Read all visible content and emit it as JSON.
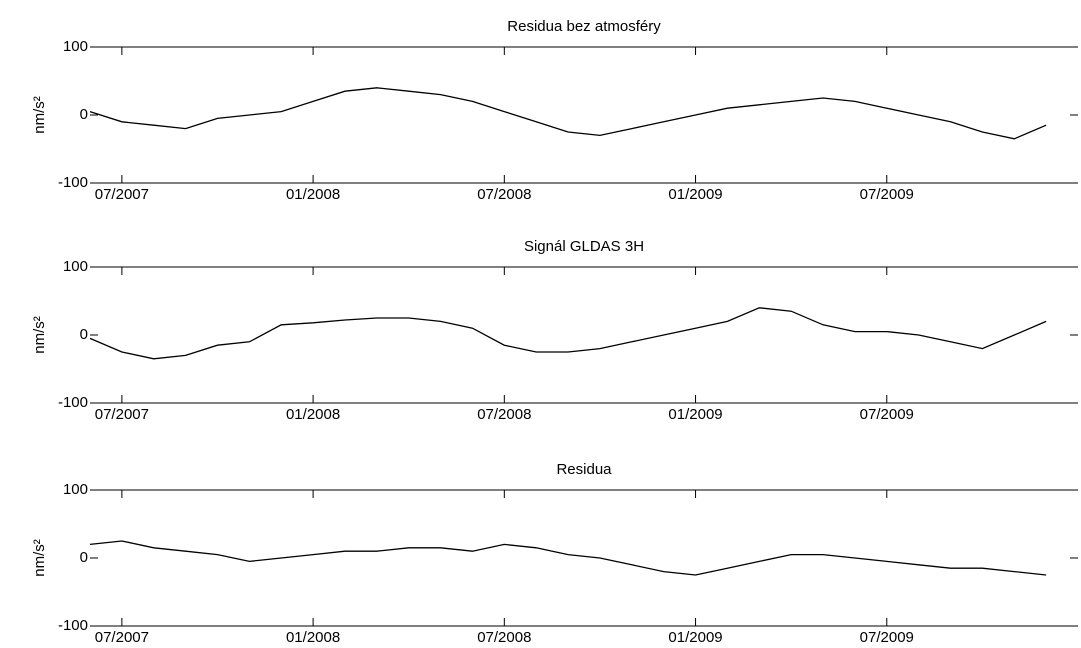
{
  "chart_data": [
    {
      "type": "line",
      "title": "Residua bez atmosféry",
      "y_label": "nm/s²",
      "x": [
        "2007-06",
        "2007-07",
        "2007-08",
        "2007-09",
        "2007-10",
        "2007-11",
        "2007-12",
        "2008-01",
        "2008-02",
        "2008-03",
        "2008-04",
        "2008-05",
        "2008-06",
        "2008-07",
        "2008-08",
        "2008-09",
        "2008-10",
        "2008-11",
        "2008-12",
        "2009-01",
        "2009-02",
        "2009-03",
        "2009-04",
        "2009-05",
        "2009-06",
        "2009-07",
        "2009-08",
        "2009-09",
        "2009-10",
        "2009-11",
        "2009-12"
      ],
      "series": [
        {
          "color": "#000000",
          "values": [
            5,
            -10,
            -15,
            -20,
            -5,
            0,
            5,
            20,
            35,
            40,
            35,
            30,
            20,
            5,
            -10,
            -25,
            -30,
            -20,
            -10,
            0,
            10,
            15,
            20,
            25,
            20,
            10,
            0,
            -10,
            -25,
            -35,
            -15
          ]
        }
      ],
      "xlim": [
        "2007-06",
        "2010-01"
      ],
      "xticks": [
        {
          "value": "2007-07",
          "label": "07/2007"
        },
        {
          "value": "2008-01",
          "label": "01/2008"
        },
        {
          "value": "2008-07",
          "label": "07/2008"
        },
        {
          "value": "2009-01",
          "label": "01/2009"
        },
        {
          "value": "2009-07",
          "label": "07/2009"
        }
      ],
      "ylim": [
        -100,
        100
      ],
      "yticks": [
        -100,
        0,
        100
      ]
    },
    {
      "type": "line",
      "title": "Signál GLDAS 3H",
      "y_label": "nm/s²",
      "x": [
        "2007-06",
        "2007-07",
        "2007-08",
        "2007-09",
        "2007-10",
        "2007-11",
        "2007-12",
        "2008-01",
        "2008-02",
        "2008-03",
        "2008-04",
        "2008-05",
        "2008-06",
        "2008-07",
        "2008-08",
        "2008-09",
        "2008-10",
        "2008-11",
        "2008-12",
        "2009-01",
        "2009-02",
        "2009-03",
        "2009-04",
        "2009-05",
        "2009-06",
        "2009-07",
        "2009-08",
        "2009-09",
        "2009-10",
        "2009-11",
        "2009-12"
      ],
      "series": [
        {
          "color": "#000000",
          "values": [
            -5,
            -25,
            -35,
            -30,
            -15,
            -10,
            15,
            18,
            22,
            25,
            25,
            20,
            10,
            -15,
            -25,
            -25,
            -20,
            -10,
            0,
            10,
            20,
            40,
            35,
            15,
            5,
            5,
            0,
            -10,
            -20,
            0,
            20
          ]
        }
      ],
      "xlim": [
        "2007-06",
        "2010-01"
      ],
      "xticks": [
        {
          "value": "2007-07",
          "label": "07/2007"
        },
        {
          "value": "2008-01",
          "label": "01/2008"
        },
        {
          "value": "2008-07",
          "label": "07/2008"
        },
        {
          "value": "2009-01",
          "label": "01/2009"
        },
        {
          "value": "2009-07",
          "label": "07/2009"
        }
      ],
      "ylim": [
        -100,
        100
      ],
      "yticks": [
        -100,
        0,
        100
      ]
    },
    {
      "type": "line",
      "title": "Residua",
      "y_label": "nm/s²",
      "x": [
        "2007-06",
        "2007-07",
        "2007-08",
        "2007-09",
        "2007-10",
        "2007-11",
        "2007-12",
        "2008-01",
        "2008-02",
        "2008-03",
        "2008-04",
        "2008-05",
        "2008-06",
        "2008-07",
        "2008-08",
        "2008-09",
        "2008-10",
        "2008-11",
        "2008-12",
        "2009-01",
        "2009-02",
        "2009-03",
        "2009-04",
        "2009-05",
        "2009-06",
        "2009-07",
        "2009-08",
        "2009-09",
        "2009-10",
        "2009-11",
        "2009-12"
      ],
      "series": [
        {
          "color": "#000000",
          "values": [
            20,
            25,
            15,
            10,
            5,
            -5,
            0,
            5,
            10,
            10,
            15,
            15,
            10,
            20,
            15,
            5,
            0,
            -10,
            -20,
            -25,
            -15,
            -5,
            5,
            5,
            0,
            -5,
            -10,
            -15,
            -15,
            -20,
            -25
          ]
        }
      ],
      "xlim": [
        "2007-06",
        "2010-01"
      ],
      "xticks": [
        {
          "value": "2007-07",
          "label": "07/2007"
        },
        {
          "value": "2008-01",
          "label": "01/2008"
        },
        {
          "value": "2008-07",
          "label": "07/2008"
        },
        {
          "value": "2009-01",
          "label": "01/2009"
        },
        {
          "value": "2009-07",
          "label": "07/2009"
        }
      ],
      "ylim": [
        -100,
        100
      ],
      "yticks": [
        -100,
        0,
        100
      ]
    }
  ]
}
